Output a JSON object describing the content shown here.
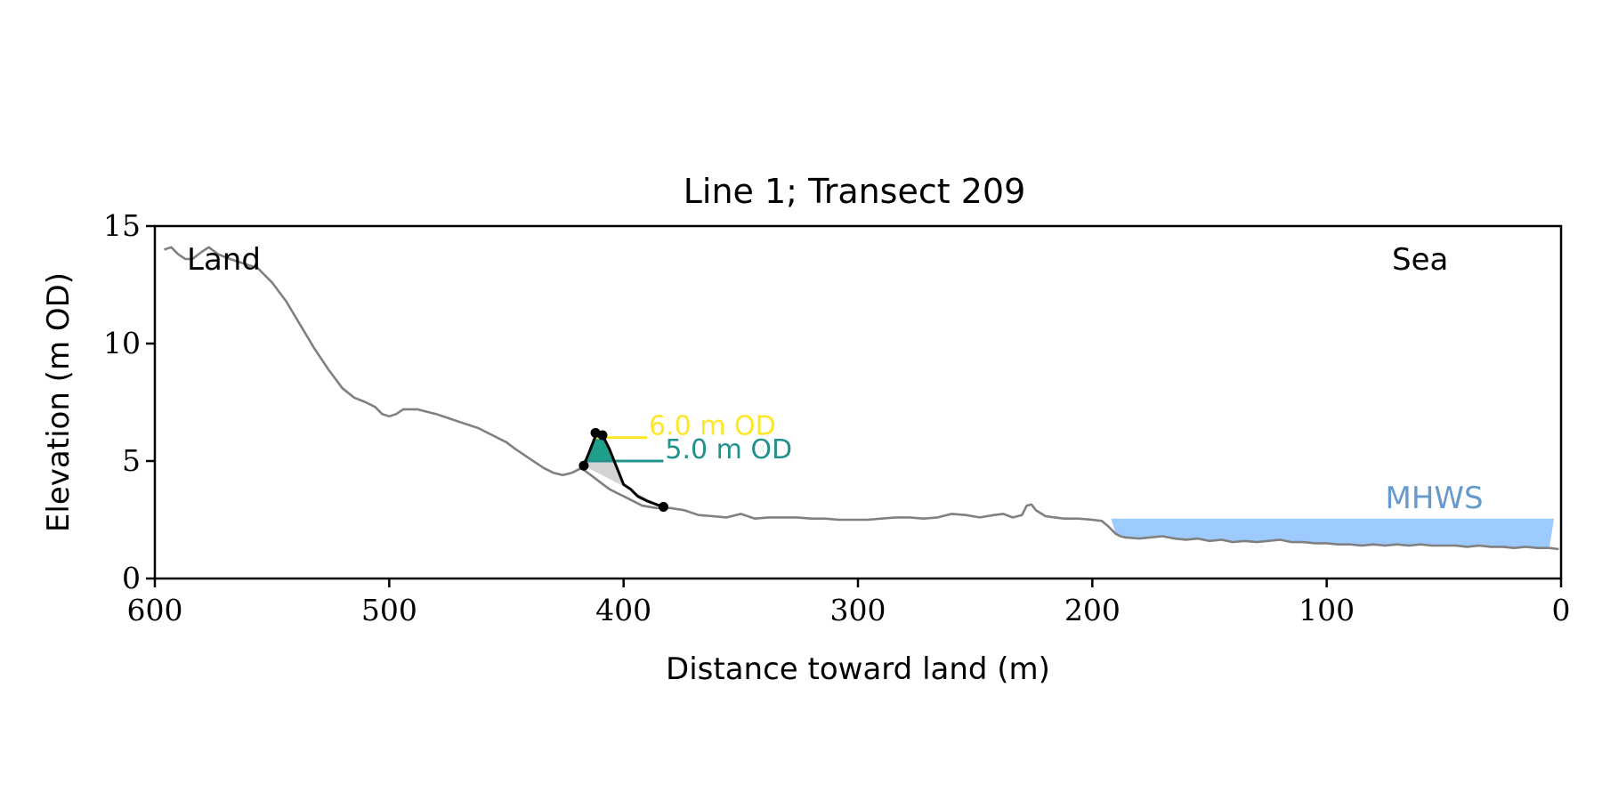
{
  "chart_data": {
    "type": "line",
    "title": "Line 1; Transect 209",
    "xlabel": "Distance toward land (m)",
    "ylabel": "Elevation (m OD)",
    "xlim": [
      600,
      0
    ],
    "ylim": [
      0,
      15
    ],
    "x_reversed": true,
    "xticks": [
      600,
      500,
      400,
      300,
      200,
      100,
      0
    ],
    "yticks": [
      0,
      5,
      10,
      15
    ],
    "grid": false,
    "annotations": {
      "land": "Land",
      "sea": "Sea",
      "mhws": "MHWS"
    },
    "colors": {
      "profile": "#808080",
      "dune": "#000000",
      "fill_upper": "#1f9e89",
      "fill_lower": "#d3d3d3",
      "level_6": "#fde725",
      "level_5": "#21918c",
      "mhws": "#9ecbff",
      "mhws_text": "#6699cc"
    },
    "profile": {
      "x": [
        596,
        593,
        590,
        587,
        584,
        580,
        577,
        573,
        568,
        562,
        556,
        550,
        544,
        538,
        532,
        526,
        520,
        515,
        510,
        506,
        503,
        500,
        497,
        494,
        491,
        488,
        484,
        480,
        474,
        468,
        462,
        456,
        450,
        446,
        440,
        434,
        430,
        426,
        422,
        418,
        414,
        410,
        406,
        402,
        398,
        392,
        386,
        380,
        374,
        368,
        362,
        356,
        350,
        344,
        338,
        332,
        326,
        320,
        314,
        308,
        302,
        296,
        290,
        284,
        278,
        272,
        266,
        260,
        254,
        248,
        242,
        238,
        234,
        230,
        228,
        226,
        224,
        220,
        216,
        212,
        206,
        200,
        196,
        193,
        190,
        188,
        186,
        180,
        175,
        170,
        165,
        160,
        155,
        150,
        145,
        140,
        135,
        130,
        125,
        120,
        115,
        110,
        105,
        100,
        95,
        90,
        85,
        80,
        75,
        70,
        65,
        60,
        55,
        50,
        45,
        40,
        35,
        30,
        25,
        20,
        15,
        10,
        5,
        1
      ],
      "y": [
        14.0,
        14.1,
        13.8,
        13.6,
        13.6,
        13.9,
        14.1,
        13.8,
        13.6,
        13.4,
        13.2,
        12.6,
        11.8,
        10.8,
        9.8,
        8.9,
        8.1,
        7.7,
        7.5,
        7.3,
        7.0,
        6.9,
        7.0,
        7.2,
        7.2,
        7.2,
        7.1,
        7.0,
        6.8,
        6.6,
        6.4,
        6.1,
        5.8,
        5.5,
        5.1,
        4.7,
        4.5,
        4.4,
        4.5,
        4.7,
        4.4,
        4.1,
        3.8,
        3.6,
        3.4,
        3.1,
        3.0,
        3.0,
        2.9,
        2.7,
        2.65,
        2.6,
        2.75,
        2.55,
        2.6,
        2.6,
        2.6,
        2.55,
        2.55,
        2.5,
        2.5,
        2.5,
        2.55,
        2.6,
        2.6,
        2.55,
        2.6,
        2.75,
        2.7,
        2.6,
        2.7,
        2.75,
        2.6,
        2.7,
        3.1,
        3.15,
        2.9,
        2.65,
        2.6,
        2.55,
        2.55,
        2.5,
        2.45,
        2.2,
        1.9,
        1.8,
        1.75,
        1.7,
        1.75,
        1.8,
        1.7,
        1.65,
        1.7,
        1.6,
        1.65,
        1.55,
        1.6,
        1.55,
        1.6,
        1.65,
        1.55,
        1.55,
        1.5,
        1.5,
        1.45,
        1.45,
        1.4,
        1.45,
        1.4,
        1.45,
        1.4,
        1.45,
        1.4,
        1.4,
        1.4,
        1.35,
        1.4,
        1.35,
        1.35,
        1.3,
        1.35,
        1.3,
        1.3,
        1.25
      ]
    },
    "dune": {
      "x": [
        417,
        415,
        413,
        411.5,
        410,
        408.5,
        406,
        404,
        402,
        400,
        397,
        394,
        390,
        386,
        383
      ],
      "y": [
        4.8,
        5.3,
        5.8,
        6.2,
        6.1,
        6.0,
        5.5,
        5.0,
        4.5,
        4.0,
        3.8,
        3.5,
        3.3,
        3.15,
        3.05
      ]
    },
    "dune_points": {
      "x": [
        417,
        412,
        409,
        383
      ],
      "y": [
        4.8,
        6.2,
        6.1,
        3.05
      ]
    },
    "levels": [
      {
        "label": "6.0 m OD",
        "y": 6.0,
        "x_start": 412,
        "x_end": 390
      },
      {
        "label": "5.0 m OD",
        "y": 5.0,
        "x_start": 417,
        "x_end": 383
      }
    ],
    "mhws_band": {
      "x_start": 192,
      "x_end": 3,
      "y_top": 2.55
    }
  }
}
